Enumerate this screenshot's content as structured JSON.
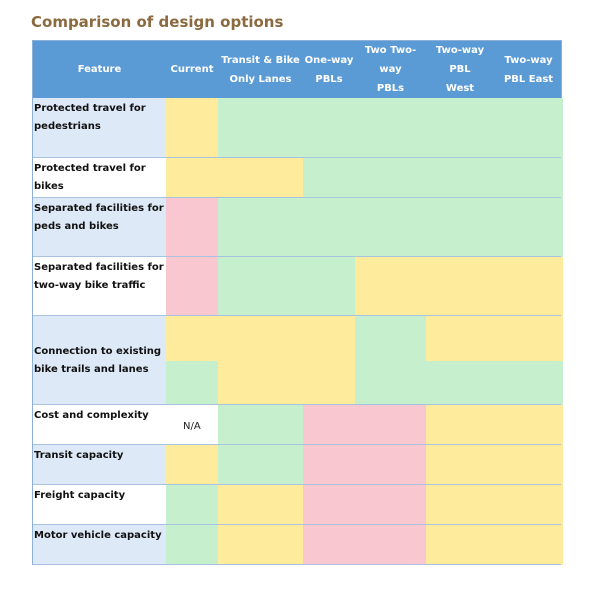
{
  "title": "Comparison of design options",
  "columns": [
    "Feature",
    "Current",
    "Transit & Bike\nOnly Lanes",
    "One-way\nPBLs",
    "Two Two-way\nPBLs",
    "Two-way PBL\nWest",
    "Two-way\nPBL East"
  ],
  "rows": [
    {
      "feature": "Protected travel for\npedestrians",
      "ratings": [
        "medium",
        "good",
        "good",
        "good",
        "good",
        "good"
      ]
    },
    {
      "feature": "Protected travel for bikes",
      "ratings": [
        "medium",
        "medium",
        "good",
        "good",
        "good",
        "good"
      ]
    },
    {
      "feature": "Separated facilities for\npeds and bikes",
      "ratings": [
        "poor",
        "good",
        "good",
        "good",
        "good",
        "good"
      ]
    },
    {
      "feature": "Separated facilities for\ntwo-way bike traffic",
      "ratings": [
        "poor",
        "good",
        "good",
        "medium",
        "medium",
        "medium"
      ]
    },
    {
      "feature": "Connection to existing\nbike trails and lanes",
      "ratings": [
        [
          "medium",
          "good"
        ],
        [
          "medium",
          "medium"
        ],
        [
          "medium",
          "medium"
        ],
        [
          "good",
          "good"
        ],
        [
          "medium",
          "good"
        ],
        [
          "medium",
          "good"
        ]
      ]
    },
    {
      "feature": "Cost and complexity",
      "ratings": [
        "none",
        "good",
        "poor",
        "poor",
        "medium",
        "medium"
      ],
      "note": "N/A"
    },
    {
      "feature": "Transit capacity",
      "ratings": [
        "medium",
        "good",
        "poor",
        "poor",
        "medium",
        "medium"
      ]
    },
    {
      "feature": "Freight capacity",
      "ratings": [
        "good",
        "medium",
        "poor",
        "poor",
        "medium",
        "medium"
      ]
    },
    {
      "feature": "Motor vehicle capacity",
      "ratings": [
        "good",
        "medium",
        "poor",
        "poor",
        "medium",
        "medium"
      ]
    }
  ],
  "rating_colors": {
    "good": "#c6efce",
    "medium": "#ffeb9c",
    "poor": "#f8c7cf"
  }
}
